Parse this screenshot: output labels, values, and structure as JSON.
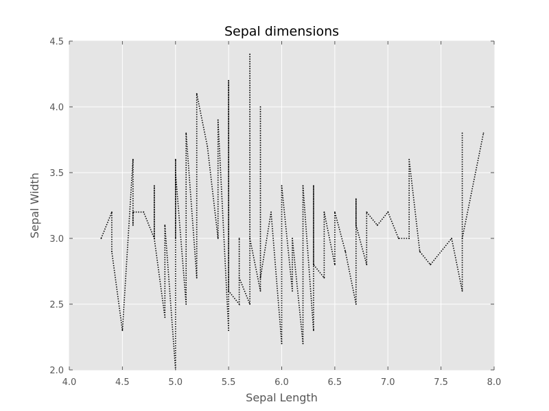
{
  "chart_data": {
    "type": "line",
    "title": "Sepal dimensions",
    "xlabel": "Sepal Length",
    "ylabel": "Sepal Width",
    "xlim": [
      4.0,
      8.0
    ],
    "ylim": [
      2.0,
      4.5
    ],
    "grid": true,
    "x_ticks": [
      "4.0",
      "4.5",
      "5.0",
      "5.5",
      "6.0",
      "6.5",
      "7.0",
      "7.5",
      "8.0"
    ],
    "y_ticks": [
      "2.0",
      "2.5",
      "3.0",
      "3.5",
      "4.0",
      "4.5"
    ],
    "colors": {
      "plot_background": "#e5e5e5",
      "grid": "#ffffff",
      "line": "#000000"
    },
    "series": [
      {
        "x": [
          4.3,
          4.4,
          4.4,
          4.5,
          4.6,
          4.6,
          4.6,
          4.7,
          4.8,
          4.8,
          4.8,
          4.9,
          4.9,
          5.0,
          5.0,
          5.0,
          5.0,
          5.1,
          5.1,
          5.2,
          5.2,
          5.3,
          5.4,
          5.4,
          5.5,
          5.5,
          5.5,
          5.6,
          5.6,
          5.6,
          5.7,
          5.7,
          5.7,
          5.8,
          5.8,
          5.8,
          5.9,
          6.0,
          6.0,
          6.1,
          6.1,
          6.2,
          6.2,
          6.3,
          6.3,
          6.3,
          6.4,
          6.4,
          6.5,
          6.5,
          6.6,
          6.7,
          6.7,
          6.7,
          6.8,
          6.8,
          6.9,
          7.0,
          7.1,
          7.2,
          7.2,
          7.3,
          7.4,
          7.6,
          7.7,
          7.7,
          7.7,
          7.9
        ],
        "y": [
          3.0,
          3.2,
          2.9,
          2.3,
          3.6,
          3.1,
          3.2,
          3.2,
          3.0,
          3.4,
          3.0,
          2.4,
          3.1,
          2.0,
          3.6,
          3.0,
          3.5,
          2.5,
          3.8,
          2.7,
          4.1,
          3.7,
          3.0,
          3.9,
          2.3,
          4.2,
          2.6,
          2.5,
          3.0,
          2.7,
          2.5,
          4.4,
          3.0,
          2.6,
          4.0,
          2.7,
          3.2,
          2.2,
          3.4,
          2.6,
          3.0,
          2.2,
          3.4,
          2.3,
          3.4,
          2.8,
          2.7,
          3.2,
          2.8,
          3.2,
          2.9,
          2.5,
          3.3,
          3.1,
          2.8,
          3.2,
          3.1,
          3.2,
          3.0,
          3.0,
          3.6,
          2.9,
          2.8,
          3.0,
          2.6,
          3.8,
          3.0,
          3.8
        ]
      }
    ]
  }
}
